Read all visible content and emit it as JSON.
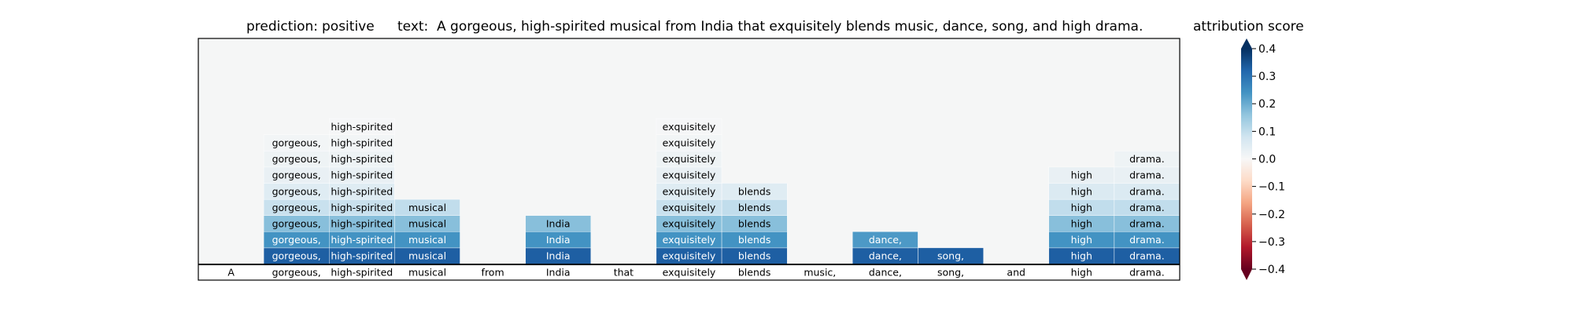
{
  "chart_data": {
    "type": "heatmap",
    "title_prediction_label": "prediction:",
    "title_prediction_value": "positive",
    "title_text_label": "text:",
    "title_text_value": "A gorgeous, high-spirited musical from India that exquisitely blends music, dance, song, and high drama.",
    "colorbar_title": "attribution score",
    "tokens": [
      "A",
      "gorgeous,",
      "high-spirited",
      "musical",
      "from",
      "India",
      "that",
      "exquisitely",
      "blends",
      "music,",
      "dance,",
      "song,",
      "and",
      "high",
      "drama."
    ],
    "attribution_columns": [
      [],
      [
        0.33,
        0.24,
        0.17,
        0.09,
        0.05,
        0.03,
        0.02,
        0.01
      ],
      [
        0.33,
        0.24,
        0.17,
        0.09,
        0.05,
        0.03,
        0.02,
        0.01,
        0.005
      ],
      [
        0.33,
        0.24,
        0.17,
        0.1
      ],
      [],
      [
        0.33,
        0.24,
        0.17
      ],
      [],
      [
        0.33,
        0.24,
        0.17,
        0.09,
        0.05,
        0.03,
        0.02,
        0.01,
        0.005
      ],
      [
        0.33,
        0.24,
        0.17,
        0.1,
        0.05
      ],
      [],
      [
        0.33,
        0.23
      ],
      [
        0.33
      ],
      [],
      [
        0.33,
        0.24,
        0.17,
        0.1,
        0.06,
        0.03
      ],
      [
        0.33,
        0.24,
        0.17,
        0.1,
        0.06,
        0.03,
        0.02
      ]
    ],
    "colorscale": "RdBu",
    "vmin": -0.4,
    "vmax": 0.4,
    "colorbar_ticks": [
      "−0.4",
      "−0.3",
      "−0.2",
      "−0.1",
      "0.0",
      "0.1",
      "0.2",
      "0.3",
      "0.4"
    ],
    "colorbar_tick_values": [
      -0.4,
      -0.3,
      -0.2,
      -0.1,
      0.0,
      0.1,
      0.2,
      0.3,
      0.4
    ]
  }
}
